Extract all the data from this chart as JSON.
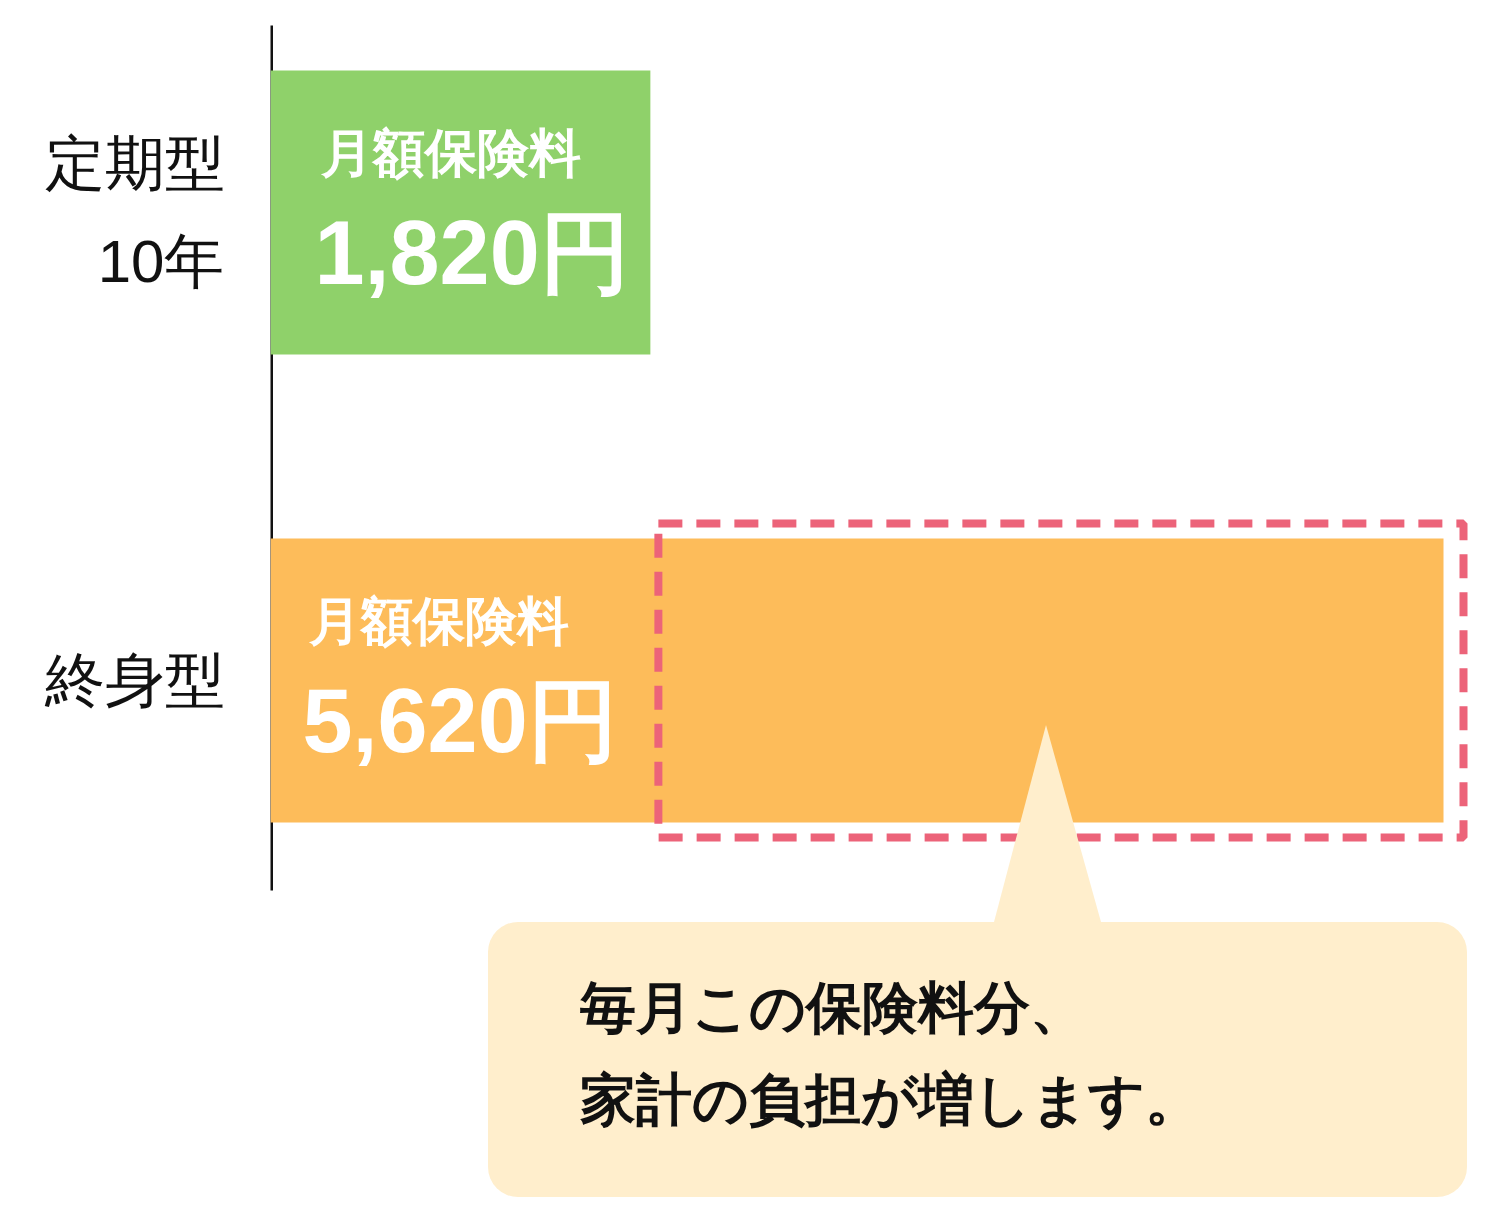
{
  "chart_data": {
    "type": "bar",
    "orientation": "horizontal",
    "categories": [
      "定期型\n10年",
      "終身型"
    ],
    "values": [
      1820,
      5620
    ],
    "colors": [
      "#8fd16a",
      "#fdbc5a"
    ],
    "value_labels": [
      "月額保険料\n1,820円",
      "月額保険料\n5,620円"
    ],
    "annotations": [
      "毎月この保険料分、家計の負担が増します。"
    ],
    "tick_labels": "y"
  }
}
